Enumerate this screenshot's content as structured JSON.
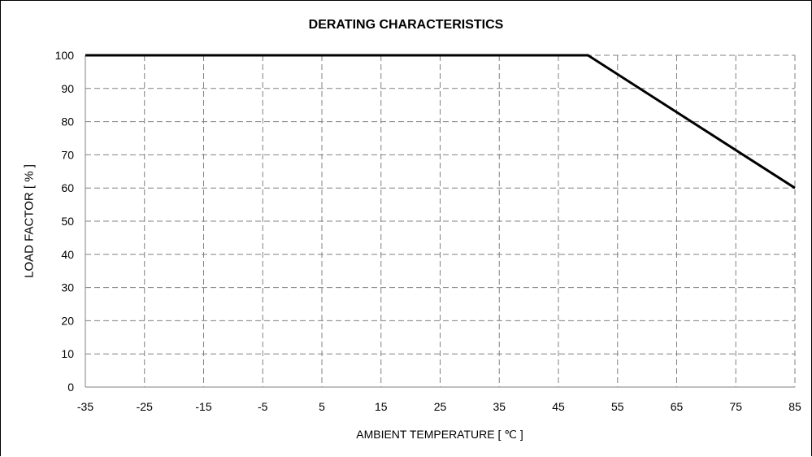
{
  "chart_data": {
    "type": "line",
    "title": "DERATING CHARACTERISTICS",
    "xlabel": "AMBIENT TEMPERATURE [ ℃ ]",
    "ylabel": "LOAD FACTOR [ % ]",
    "xlim": [
      -35,
      85
    ],
    "ylim": [
      0,
      100
    ],
    "x_ticks": [
      "-35",
      "-25",
      "-15",
      "-5",
      "5",
      "15",
      "25",
      "35",
      "45",
      "55",
      "65",
      "75",
      "85"
    ],
    "y_ticks": [
      "0",
      "10",
      "20",
      "30",
      "40",
      "50",
      "60",
      "70",
      "80",
      "90",
      "100"
    ],
    "grid": true,
    "grid_style": "dashed",
    "series": [
      {
        "color": "#000000",
        "points": [
          {
            "x": -35,
            "y": 100
          },
          {
            "x": 50,
            "y": 100
          },
          {
            "x": 85,
            "y": 60
          }
        ]
      }
    ]
  }
}
